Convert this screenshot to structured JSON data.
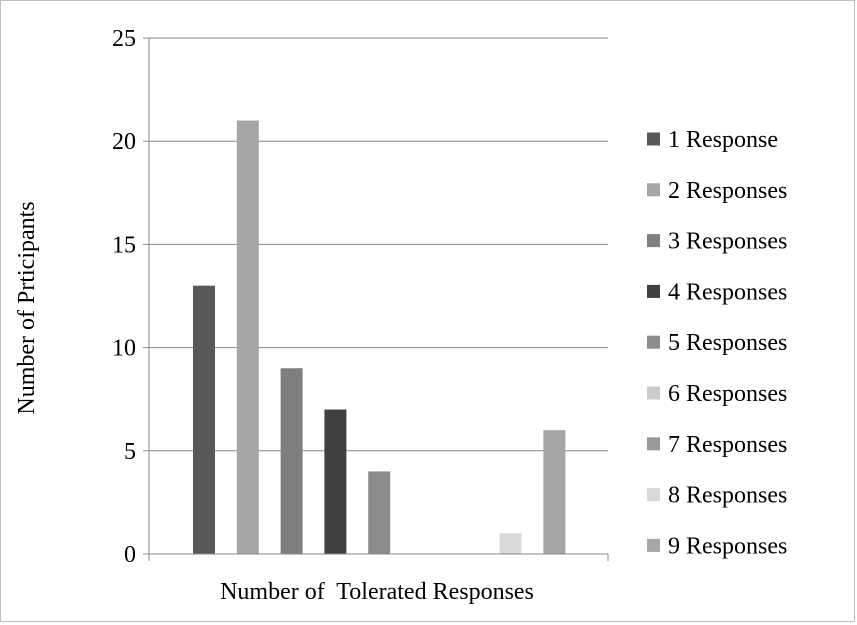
{
  "chart_data": {
    "type": "bar",
    "title": "",
    "xlabel": "Number of  Tolerated Responses",
    "ylabel": "Number of Prticipants",
    "ylim": [
      0,
      25
    ],
    "yticks": [
      0,
      5,
      10,
      15,
      20,
      25
    ],
    "grid": true,
    "legend_position": "right",
    "series": [
      {
        "name": "1 Response",
        "value": 13,
        "color": "#595959"
      },
      {
        "name": "2 Responses",
        "value": 21,
        "color": "#a6a6a6"
      },
      {
        "name": "3 Responses",
        "value": 9,
        "color": "#7f7f7f"
      },
      {
        "name": "4 Responses",
        "value": 7,
        "color": "#404040"
      },
      {
        "name": "5 Responses",
        "value": 4,
        "color": "#8c8c8c"
      },
      {
        "name": "6 Responses",
        "value": 0,
        "color": "#cccccc"
      },
      {
        "name": "7 Responses",
        "value": 0,
        "color": "#999999"
      },
      {
        "name": "8 Responses",
        "value": 1,
        "color": "#d9d9d9"
      },
      {
        "name": "9 Responses",
        "value": 6,
        "color": "#a6a6a6"
      }
    ]
  }
}
